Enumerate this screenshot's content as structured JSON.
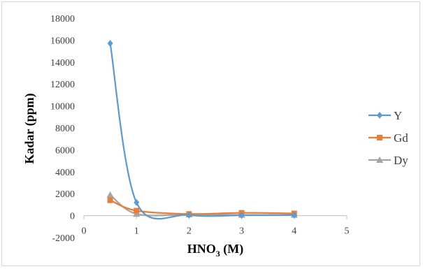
{
  "chart_data": {
    "type": "scatter",
    "title": "",
    "xlabel": "HNO",
    "xlabel_sub": "3",
    "xlabel_suffix": " (M)",
    "ylabel": "Kadar (ppm)",
    "xlim": [
      0,
      5
    ],
    "ylim": [
      -2000,
      18000
    ],
    "x_ticks": [
      "0",
      "1",
      "2",
      "3",
      "4",
      "5"
    ],
    "y_ticks": [
      "-2000",
      "0",
      "2000",
      "4000",
      "6000",
      "8000",
      "10000",
      "12000",
      "14000",
      "16000",
      "18000"
    ],
    "grid": false,
    "legend_position": "right",
    "smoothed_lines": true,
    "series": [
      {
        "name": "Y",
        "color": "#5b9bd5",
        "marker": "diamond",
        "x": [
          0.5,
          1,
          2,
          3,
          4
        ],
        "y": [
          15700,
          1200,
          50,
          30,
          50
        ]
      },
      {
        "name": "Gd",
        "color": "#ed7d31",
        "marker": "square",
        "x": [
          0.5,
          1,
          2,
          3,
          4
        ],
        "y": [
          1400,
          450,
          150,
          250,
          200
        ]
      },
      {
        "name": "Dy",
        "color": "#a5a5a5",
        "marker": "triangle",
        "x": [
          0.5,
          1,
          2,
          3,
          4
        ],
        "y": [
          1900,
          150,
          100,
          60,
          60
        ]
      }
    ]
  }
}
